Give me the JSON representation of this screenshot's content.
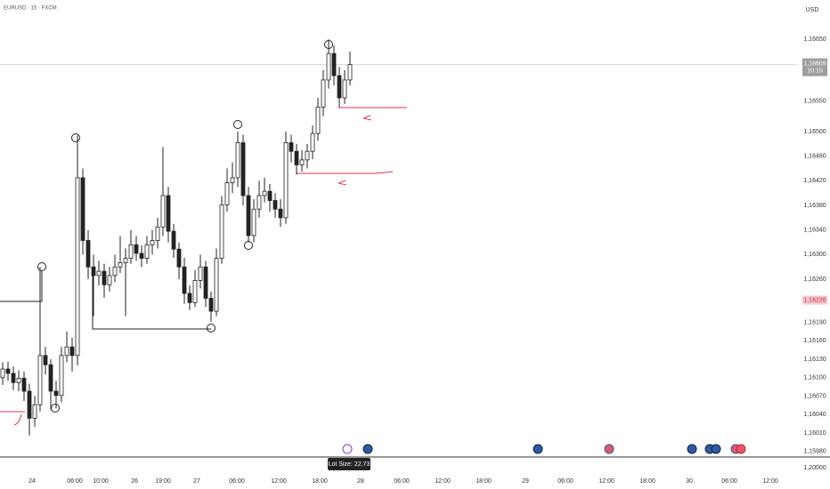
{
  "chart_data": {
    "type": "candlestick",
    "title": "EURUSD · 15 · FXCM",
    "currency": "USD",
    "up_color": "#ffffff",
    "down_color": "#222222",
    "wick_color": "#222222",
    "open": [
      1.161,
      1.16114,
      1.16107,
      1.16092,
      1.16099,
      1.16078,
      1.16034,
      1.16056,
      1.16136,
      1.16121,
      1.16078,
      1.16071,
      1.16136,
      1.1615,
      1.16136,
      1.16425,
      1.16323,
      1.1628,
      1.16266,
      1.16273,
      1.16251,
      1.16266,
      1.1628,
      1.16287,
      1.16294,
      1.16316,
      1.16302,
      1.16294,
      1.16316,
      1.16323,
      1.16345,
      1.16396,
      1.16338,
      1.16309,
      1.1628,
      1.16237,
      1.16222,
      1.16258,
      1.1628,
      1.16229,
      1.16208,
      1.16294,
      1.16381,
      1.16417,
      1.16425,
      1.16482,
      1.16396,
      1.16331,
      1.16374,
      1.16396,
      1.16403,
      1.16388,
      1.16374,
      1.1636,
      1.16482,
      1.16468,
      1.16446,
      1.16454,
      1.16468,
      1.16497,
      1.1654,
      1.16584,
      1.16627,
      1.16591,
      1.16555,
      1.16584
    ],
    "high": [
      1.16125,
      1.16126,
      1.16118,
      1.16112,
      1.1611,
      1.1609,
      1.1607,
      1.1628,
      1.1615,
      1.1613,
      1.16095,
      1.1615,
      1.16175,
      1.16165,
      1.16494,
      1.1644,
      1.1634,
      1.163,
      1.1629,
      1.16285,
      1.1628,
      1.163,
      1.1633,
      1.1631,
      1.1634,
      1.1633,
      1.16315,
      1.1633,
      1.1634,
      1.1636,
      1.16475,
      1.1641,
      1.1635,
      1.1632,
      1.16295,
      1.1625,
      1.16275,
      1.163,
      1.1629,
      1.1624,
      1.1631,
      1.16395,
      1.1644,
      1.1645,
      1.165,
      1.16495,
      1.1641,
      1.1639,
      1.1642,
      1.16425,
      1.16415,
      1.164,
      1.1639,
      1.165,
      1.16495,
      1.1648,
      1.1647,
      1.1648,
      1.1651,
      1.16555,
      1.166,
      1.1665,
      1.1664,
      1.16605,
      1.166,
      1.1663
    ],
    "low": [
      1.16088,
      1.16095,
      1.1608,
      1.16078,
      1.16062,
      1.16006,
      1.1602,
      1.16045,
      1.16105,
      1.16048,
      1.1605,
      1.1606,
      1.16125,
      1.1611,
      1.1612,
      1.163,
      1.1626,
      1.162,
      1.1625,
      1.1623,
      1.1624,
      1.16255,
      1.1627,
      1.162,
      1.16285,
      1.1629,
      1.1628,
      1.16285,
      1.163,
      1.1631,
      1.1633,
      1.1632,
      1.16295,
      1.1626,
      1.1622,
      1.1621,
      1.16215,
      1.16245,
      1.16215,
      1.16191,
      1.162,
      1.16285,
      1.1637,
      1.164,
      1.1641,
      1.1638,
      1.1632,
      1.1632,
      1.1636,
      1.16385,
      1.1637,
      1.1636,
      1.16345,
      1.1635,
      1.1645,
      1.1643,
      1.16435,
      1.1644,
      1.16455,
      1.16485,
      1.16525,
      1.1657,
      1.16575,
      1.1654,
      1.16545,
      1.16575
    ],
    "close": [
      1.16114,
      1.16107,
      1.16092,
      1.16099,
      1.16078,
      1.16034,
      1.16056,
      1.16136,
      1.16121,
      1.16078,
      1.16071,
      1.16136,
      1.1615,
      1.16136,
      1.16425,
      1.16323,
      1.1628,
      1.16266,
      1.16273,
      1.16251,
      1.16266,
      1.1628,
      1.16287,
      1.16294,
      1.16316,
      1.16302,
      1.16294,
      1.16316,
      1.16323,
      1.16345,
      1.16396,
      1.16338,
      1.16309,
      1.1628,
      1.16237,
      1.16222,
      1.16258,
      1.1628,
      1.16229,
      1.16208,
      1.16294,
      1.16381,
      1.16417,
      1.16425,
      1.16482,
      1.16396,
      1.16331,
      1.16374,
      1.16396,
      1.16403,
      1.16388,
      1.16374,
      1.1636,
      1.16482,
      1.16468,
      1.16446,
      1.16454,
      1.16468,
      1.16497,
      1.1654,
      1.16584,
      1.16627,
      1.16591,
      1.16555,
      1.16584,
      1.16609
    ],
    "ylim": [
      1.15971,
      1.16714
    ],
    "yticks": [
      {
        "value": 1.1665,
        "label": "1,16650"
      },
      {
        "value": 1.1655,
        "label": "1,16550"
      },
      {
        "value": 1.165,
        "label": "1,16500"
      },
      {
        "value": 1.1646,
        "label": "1,16460"
      },
      {
        "value": 1.1642,
        "label": "1,16420"
      },
      {
        "value": 1.1638,
        "label": "1,16380"
      },
      {
        "value": 1.1634,
        "label": "1,16340"
      },
      {
        "value": 1.163,
        "label": "1,16300"
      },
      {
        "value": 1.1626,
        "label": "1,16260"
      },
      {
        "value": 1.1619,
        "label": "1,16190"
      },
      {
        "value": 1.1616,
        "label": "1,16160"
      },
      {
        "value": 1.1613,
        "label": "1,16130"
      },
      {
        "value": 1.161,
        "label": "1,16100"
      },
      {
        "value": 1.1607,
        "label": "1,16070"
      },
      {
        "value": 1.1604,
        "label": "1,16040"
      },
      {
        "value": 1.1601,
        "label": "1,16010"
      },
      {
        "value": 1.1598,
        "label": "1,15980"
      }
    ],
    "x_labels": [
      "24",
      "06:00",
      "10:00",
      "26",
      "19:00",
      "27",
      "06:00",
      "12:00",
      "18:00",
      "28",
      "06:00",
      "12:00",
      "18:00",
      "29",
      "06:00",
      "12:00",
      "18:00",
      "30",
      "06:00",
      "12:00"
    ],
    "last_price": {
      "value": 1.16609,
      "label": "1,16609",
      "countdown": "10:15"
    },
    "alert_price": {
      "value": 1.16226,
      "label": "1,16226"
    },
    "lower_pane_label": "1,20000",
    "tooltip": "Lot Size: 22.73"
  }
}
